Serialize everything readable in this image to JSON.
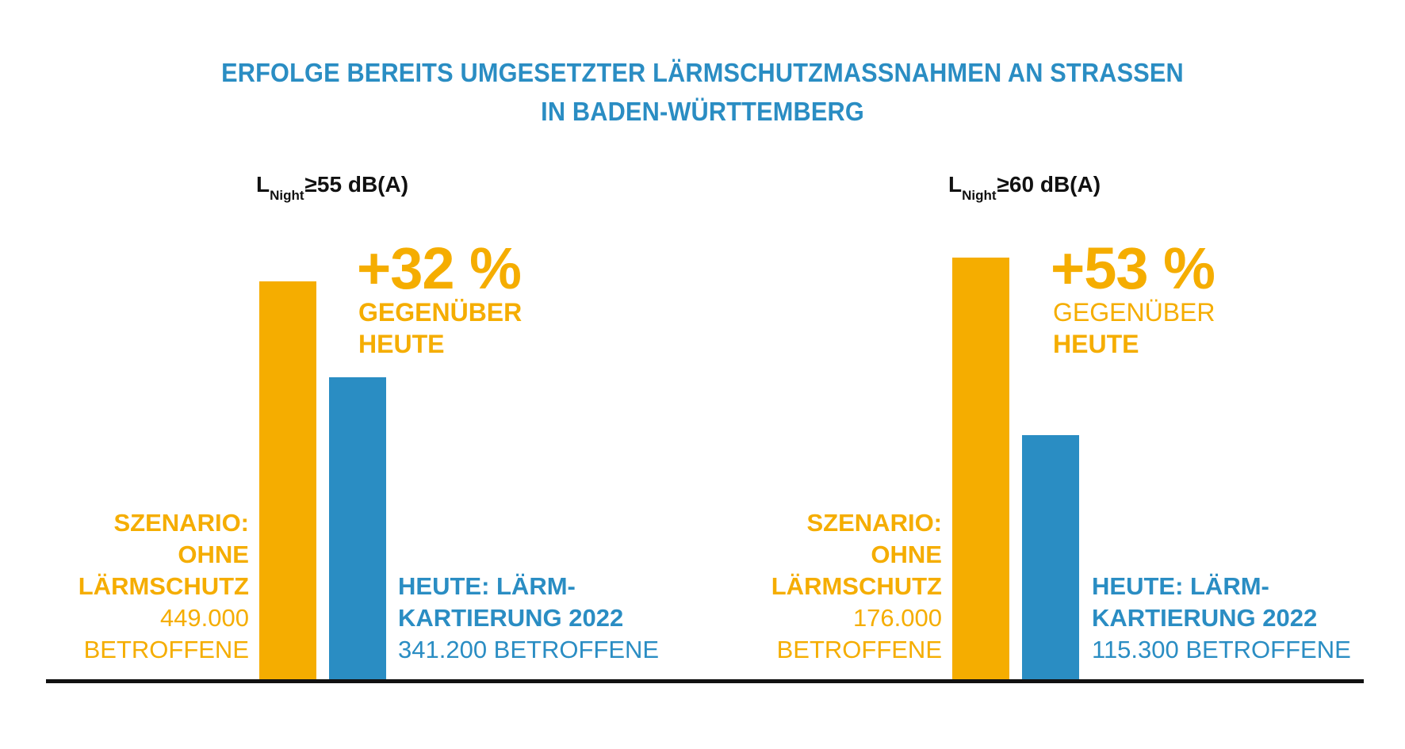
{
  "title_lines": [
    "ERFOLGE BEREITS UMGESETZTER LÄRMSCHUTZMASSNAHMEN AN STRASSEN",
    "IN BADEN-WÜRTTEMBERG"
  ],
  "colors": {
    "orange": "#f5ad00",
    "blue": "#2a8dc3",
    "axis": "#111111"
  },
  "chart_data": [
    {
      "type": "bar",
      "title": "L_Night ≥55 dB(A)",
      "condition": {
        "main": "L",
        "sub": "Night",
        "rest": "≥55 dB(A)"
      },
      "categories": [
        "Szenario: ohne Lärmschutz",
        "Heute: Lärmkartierung 2022"
      ],
      "values": [
        449000,
        341200
      ],
      "unit": "Betroffene",
      "change_label": "+32 %",
      "change_note_lines": [
        "GEGENÜBER",
        "HEUTE"
      ],
      "labels": [
        {
          "bold_lines": [
            "SZENARIO:",
            "OHNE",
            "LÄRMSCHUTZ"
          ],
          "normal_lines": [
            "449.000",
            "BETROFFENE"
          ]
        },
        {
          "bold_lines": [
            "HEUTE: LÄRM-",
            "KARTIERUNG 2022"
          ],
          "normal_lines": [
            "341.200 BETROFFENE"
          ]
        }
      ]
    },
    {
      "type": "bar",
      "title": "L_Night ≥60 dB(A)",
      "condition": {
        "main": "L",
        "sub": "Night",
        "rest": "≥60 dB(A)"
      },
      "categories": [
        "Szenario: ohne Lärmschutz",
        "Heute: Lärmkartierung 2022"
      ],
      "values": [
        176000,
        115300
      ],
      "unit": "Betroffene",
      "change_label": "+53 %",
      "change_note_lines": [
        "GEGENÜBER",
        "HEUTE"
      ],
      "labels": [
        {
          "bold_lines": [
            "SZENARIO:",
            "OHNE",
            "LÄRMSCHUTZ"
          ],
          "normal_lines": [
            "176.000",
            "BETROFFENE"
          ]
        },
        {
          "bold_lines": [
            "HEUTE: LÄRM-",
            "KARTIERUNG 2022"
          ],
          "normal_lines": [
            "115.300 BETROFFENE"
          ]
        }
      ]
    }
  ]
}
